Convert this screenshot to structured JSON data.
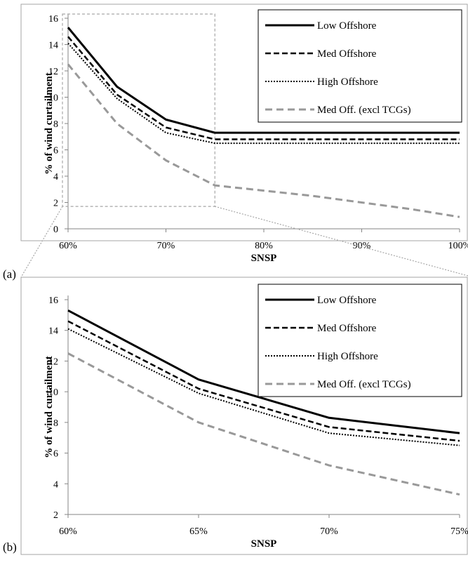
{
  "colors": {
    "low_offshore": "#000000",
    "med_offshore": "#000000",
    "high_offshore": "#000000",
    "med_off_excl_tcgs": "#999999",
    "frame": "#a6a6a6",
    "zoom_guide": "#a6a6a6"
  },
  "chart_data": [
    {
      "panel": "(a)",
      "type": "line",
      "xlabel": "SNSP",
      "ylabel": "% of wind curtailment",
      "x": [
        60,
        65,
        70,
        75,
        80,
        85,
        90,
        95,
        100
      ],
      "x_tick_labels": [
        "60%",
        "70%",
        "80%",
        "90%",
        "100%"
      ],
      "x_ticks": [
        60,
        70,
        80,
        90,
        100
      ],
      "y_ticks": [
        0,
        2,
        4,
        6,
        8,
        10,
        12,
        14,
        16
      ],
      "ylim": [
        0,
        16
      ],
      "xlim": [
        60,
        100
      ],
      "grid": false,
      "legend_position": "top-right",
      "zoom_region": {
        "x": [
          60,
          75
        ],
        "y": [
          1.7,
          16
        ]
      },
      "series": [
        {
          "name": "Low Offshore",
          "style": "solid",
          "values": [
            15.3,
            10.8,
            8.3,
            7.3,
            7.3,
            7.3,
            7.3,
            7.3,
            7.3
          ]
        },
        {
          "name": "Med Offshore",
          "style": "dashed",
          "values": [
            14.6,
            10.2,
            7.7,
            6.8,
            6.8,
            6.8,
            6.8,
            6.8,
            6.8
          ]
        },
        {
          "name": "High Offshore",
          "style": "dotted",
          "values": [
            14.1,
            9.9,
            7.3,
            6.5,
            6.5,
            6.5,
            6.5,
            6.5,
            6.5
          ]
        },
        {
          "name": "Med Off. (excl TCGs)",
          "style": "long-dash",
          "values": [
            12.5,
            8.0,
            5.2,
            3.3,
            2.9,
            2.5,
            2.0,
            1.5,
            0.9
          ]
        }
      ]
    },
    {
      "panel": "(b)",
      "type": "line",
      "xlabel": "SNSP",
      "ylabel": "% of wind curtailment",
      "x": [
        60,
        65,
        70,
        75
      ],
      "x_tick_labels": [
        "60%",
        "65%",
        "70%",
        "75%"
      ],
      "x_ticks": [
        60,
        65,
        70,
        75
      ],
      "y_ticks": [
        2,
        4,
        6,
        8,
        10,
        12,
        14,
        16
      ],
      "ylim": [
        2,
        16
      ],
      "xlim": [
        60,
        75
      ],
      "grid": false,
      "legend_position": "top-right",
      "series": [
        {
          "name": "Low Offshore",
          "style": "solid",
          "values": [
            15.3,
            10.8,
            8.3,
            7.3
          ]
        },
        {
          "name": "Med Offshore",
          "style": "dashed",
          "values": [
            14.6,
            10.2,
            7.7,
            6.8
          ]
        },
        {
          "name": "High Offshore",
          "style": "dotted",
          "values": [
            14.1,
            9.9,
            7.3,
            6.5
          ]
        },
        {
          "name": "Med Off. (excl TCGs)",
          "style": "long-dash",
          "values": [
            12.5,
            8.0,
            5.2,
            3.3
          ]
        }
      ]
    }
  ]
}
